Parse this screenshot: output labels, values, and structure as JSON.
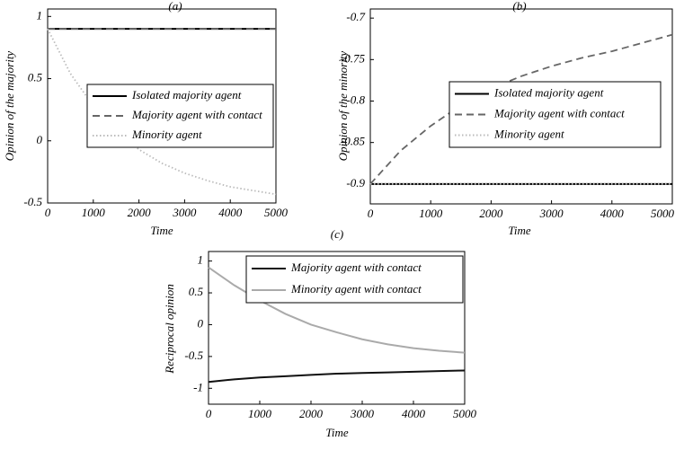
{
  "chart_data": [
    {
      "type": "line",
      "title": "(a)",
      "xlabel": "Time",
      "ylabel": "Opinion of the majority",
      "x": [
        0,
        500,
        1000,
        1500,
        2000,
        2500,
        3000,
        3500,
        4000,
        4500,
        5000
      ],
      "xlim": [
        0,
        5000
      ],
      "xticks": [
        0,
        1000,
        2000,
        3000,
        4000,
        5000
      ],
      "ylim": [
        -0.5,
        1.06
      ],
      "yticks": [
        -0.5,
        0,
        0.5,
        1
      ],
      "series": [
        {
          "name": "Isolated majority agent",
          "color": "#000000",
          "style": "solid",
          "values": [
            0.9,
            0.9,
            0.9,
            0.9,
            0.9,
            0.9,
            0.9,
            0.9,
            0.9,
            0.9,
            0.9
          ]
        },
        {
          "name": "Majority agent with contact",
          "color": "#666666",
          "style": "dashed",
          "values": [
            0.9,
            0.9,
            0.9,
            0.9,
            0.9,
            0.9,
            0.9,
            0.9,
            0.9,
            0.9,
            0.9
          ]
        },
        {
          "name": "Minority agent",
          "color": "#bbbbbb",
          "style": "dotted",
          "values": [
            0.9,
            0.54,
            0.28,
            0.08,
            -0.07,
            -0.18,
            -0.26,
            -0.32,
            -0.37,
            -0.4,
            -0.43
          ]
        }
      ]
    },
    {
      "type": "line",
      "title": "(b)",
      "xlabel": "Time",
      "ylabel": "Opinion of the minority",
      "x": [
        0,
        500,
        1000,
        1500,
        2000,
        2500,
        3000,
        3500,
        4000,
        4500,
        5000
      ],
      "xlim": [
        0,
        5000
      ],
      "xticks": [
        0,
        1000,
        2000,
        3000,
        4000,
        5000
      ],
      "ylim": [
        -0.924,
        -0.689
      ],
      "yticks": [
        -0.9,
        -0.85,
        -0.8,
        -0.75,
        -0.7
      ],
      "series": [
        {
          "name": "Isolated majority agent",
          "color": "#000000",
          "style": "solid",
          "values": [
            -0.9,
            -0.9,
            -0.9,
            -0.9,
            -0.9,
            -0.9,
            -0.9,
            -0.9,
            -0.9,
            -0.9,
            -0.9
          ]
        },
        {
          "name": "Majority agent with contact",
          "color": "#666666",
          "style": "dashed",
          "values": [
            -0.9,
            -0.86,
            -0.83,
            -0.805,
            -0.785,
            -0.77,
            -0.758,
            -0.748,
            -0.74,
            -0.73,
            -0.72
          ]
        },
        {
          "name": "Minority agent",
          "color": "#bbbbbb",
          "style": "dotted",
          "values": [
            -0.9,
            -0.9,
            -0.9,
            -0.9,
            -0.9,
            -0.9,
            -0.9,
            -0.9,
            -0.9,
            -0.9,
            -0.9
          ]
        }
      ]
    },
    {
      "type": "line",
      "title": "(c)",
      "xlabel": "Time",
      "ylabel": "Reciprocal opinion",
      "x": [
        0,
        500,
        1000,
        1500,
        2000,
        2500,
        3000,
        3500,
        4000,
        4500,
        5000
      ],
      "xlim": [
        0,
        5000
      ],
      "xticks": [
        0,
        1000,
        2000,
        3000,
        4000,
        5000
      ],
      "ylim": [
        -1.25,
        1.15
      ],
      "yticks": [
        -1,
        -0.5,
        0,
        0.5,
        1
      ],
      "series": [
        {
          "name": "Majority agent with contact",
          "color": "#111111",
          "style": "solid",
          "values": [
            -0.9,
            -0.86,
            -0.83,
            -0.81,
            -0.79,
            -0.77,
            -0.76,
            -0.75,
            -0.74,
            -0.73,
            -0.72
          ]
        },
        {
          "name": "Minority agent with contact",
          "color": "#aaaaaa",
          "style": "solid",
          "values": [
            0.9,
            0.62,
            0.38,
            0.17,
            0.0,
            -0.12,
            -0.23,
            -0.31,
            -0.37,
            -0.41,
            -0.44
          ]
        }
      ]
    }
  ]
}
